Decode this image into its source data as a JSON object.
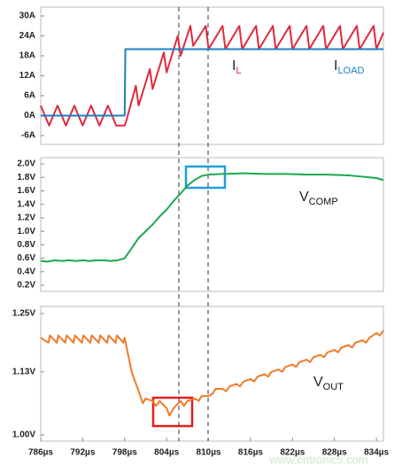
{
  "chart_data": [
    {
      "type": "line",
      "x": [
        786,
        787.2,
        788.4,
        789.6,
        790.8,
        792,
        793.2,
        794.4,
        795.6,
        796.8,
        798,
        798.1,
        799.6,
        800,
        801.6,
        802,
        803.6,
        804,
        805.6,
        806,
        807.4,
        807.8,
        809.6,
        810,
        812,
        812.4,
        814.4,
        814.8,
        816.8,
        817.2,
        819.2,
        819.6,
        821.6,
        822,
        824,
        824.4,
        826.4,
        826.8,
        828.8,
        829.2,
        831.2,
        831.6,
        833.6,
        834,
        835
      ],
      "series": [
        {
          "name": "IL",
          "color": "#e0283c",
          "values": [
            3,
            -3,
            3,
            -3,
            3,
            -3,
            3,
            -3,
            3,
            -3,
            -3,
            -2.6,
            9,
            3,
            14,
            8,
            19,
            13,
            24,
            18,
            27,
            21,
            27,
            20,
            27,
            20,
            27,
            20,
            27,
            20,
            27,
            20,
            27,
            20,
            27,
            20,
            27,
            20,
            27,
            20,
            27,
            20,
            27,
            20,
            25
          ]
        },
        {
          "name": "ILOAD",
          "color": "#1a7fc1",
          "values": [
            0,
            0,
            0,
            0,
            0,
            0,
            0,
            0,
            0,
            0,
            0,
            20,
            20,
            20,
            20,
            20,
            20,
            20,
            20,
            20,
            20,
            20,
            20,
            20,
            20,
            20,
            20,
            20,
            20,
            20,
            20,
            20,
            20,
            20,
            20,
            20,
            20,
            20,
            20,
            20,
            20,
            20,
            20,
            20,
            20
          ]
        }
      ],
      "xlim": [
        786,
        835
      ],
      "ylim": [
        -6,
        30
      ],
      "yticks": [
        {
          "value": 30,
          "label": "30A"
        },
        {
          "value": 24,
          "label": "24A"
        },
        {
          "value": 18,
          "label": "18A"
        },
        {
          "value": 12,
          "label": "12A"
        },
        {
          "value": 6,
          "label": "6A"
        },
        {
          "value": 0,
          "label": "0A"
        },
        {
          "value": -6,
          "label": "-6A"
        }
      ]
    },
    {
      "type": "line",
      "x": [
        786,
        787,
        788,
        789,
        790,
        791,
        792,
        793,
        794,
        795,
        796,
        797,
        798,
        799,
        800,
        801,
        802,
        803,
        804,
        805,
        806,
        807,
        808,
        809,
        810,
        812,
        815,
        818,
        821,
        824,
        827,
        830,
        833,
        834,
        835
      ],
      "series": [
        {
          "name": "VCOMP",
          "color": "#1aa84f",
          "values": [
            0.56,
            0.55,
            0.57,
            0.56,
            0.57,
            0.56,
            0.57,
            0.56,
            0.57,
            0.57,
            0.56,
            0.57,
            0.6,
            0.75,
            0.9,
            1.0,
            1.1,
            1.22,
            1.32,
            1.45,
            1.56,
            1.68,
            1.76,
            1.82,
            1.84,
            1.85,
            1.86,
            1.85,
            1.85,
            1.84,
            1.84,
            1.83,
            1.8,
            1.79,
            1.76
          ]
        }
      ],
      "xlim": [
        786,
        835
      ],
      "ylim": [
        0.2,
        2.0
      ],
      "yticks": [
        {
          "value": 2.0,
          "label": "2.0V"
        },
        {
          "value": 1.8,
          "label": "1.8V"
        },
        {
          "value": 1.6,
          "label": "1.6V"
        },
        {
          "value": 1.4,
          "label": "1.4V"
        },
        {
          "value": 1.2,
          "label": "1.2V"
        },
        {
          "value": 1.0,
          "label": "1.0V"
        },
        {
          "value": 0.8,
          "label": "0.8V"
        },
        {
          "value": 0.6,
          "label": "0.6V"
        },
        {
          "value": 0.4,
          "label": "0.4V"
        },
        {
          "value": 0.2,
          "label": "0.2V"
        }
      ]
    },
    {
      "type": "line",
      "x": [
        786,
        787.1,
        787.3,
        788.3,
        788.5,
        789.5,
        789.7,
        790.7,
        790.9,
        791.9,
        792.1,
        793.1,
        793.3,
        794.3,
        794.5,
        795.5,
        795.7,
        796.7,
        796.9,
        797.8,
        798,
        799,
        800,
        800.6,
        801,
        802,
        802.5,
        803,
        804,
        804.4,
        805,
        806,
        806.5,
        807,
        808,
        808.6,
        809,
        810,
        810.6,
        811,
        812,
        812.5,
        813,
        814,
        814.5,
        815,
        816,
        816.5,
        817,
        818,
        818.5,
        819,
        820,
        820.5,
        821,
        822,
        822.5,
        823,
        824,
        824.5,
        825,
        826,
        826.5,
        827,
        828,
        828.5,
        829,
        830,
        830.5,
        831,
        832,
        832.5,
        833,
        834,
        834.5,
        835
      ],
      "series": [
        {
          "name": "VOUT",
          "color": "#f07a2a",
          "values": [
            1.2,
            1.19,
            1.205,
            1.19,
            1.205,
            1.19,
            1.205,
            1.19,
            1.205,
            1.19,
            1.205,
            1.19,
            1.205,
            1.19,
            1.205,
            1.19,
            1.205,
            1.19,
            1.205,
            1.19,
            1.2,
            1.13,
            1.09,
            1.065,
            1.075,
            1.07,
            1.06,
            1.07,
            1.055,
            1.04,
            1.055,
            1.07,
            1.06,
            1.07,
            1.075,
            1.07,
            1.08,
            1.08,
            1.085,
            1.095,
            1.095,
            1.09,
            1.1,
            1.105,
            1.1,
            1.11,
            1.115,
            1.11,
            1.12,
            1.125,
            1.12,
            1.13,
            1.135,
            1.13,
            1.14,
            1.145,
            1.14,
            1.15,
            1.155,
            1.15,
            1.16,
            1.165,
            1.16,
            1.17,
            1.175,
            1.17,
            1.18,
            1.185,
            1.18,
            1.19,
            1.195,
            1.19,
            1.2,
            1.21,
            1.205,
            1.215
          ]
        }
      ],
      "xlim": [
        786,
        835
      ],
      "ylim": [
        1.0,
        1.25
      ],
      "yticks": [
        {
          "value": 1.25,
          "label": "1.25V"
        },
        {
          "value": 1.13,
          "label": "1.13V"
        },
        {
          "value": 1.0,
          "label": "1.00V"
        }
      ],
      "xticks": [
        {
          "value": 786,
          "label": "786µs"
        },
        {
          "value": 792,
          "label": "792µs"
        },
        {
          "value": 798,
          "label": "798µs"
        },
        {
          "value": 804,
          "label": "804µs"
        },
        {
          "value": 810,
          "label": "810µs"
        },
        {
          "value": 816,
          "label": "816µs"
        },
        {
          "value": 822,
          "label": "822µs"
        },
        {
          "value": 828,
          "label": "828µs"
        },
        {
          "value": 834,
          "label": "834µs"
        }
      ],
      "watermark": "www.cntronics.com"
    }
  ]
}
